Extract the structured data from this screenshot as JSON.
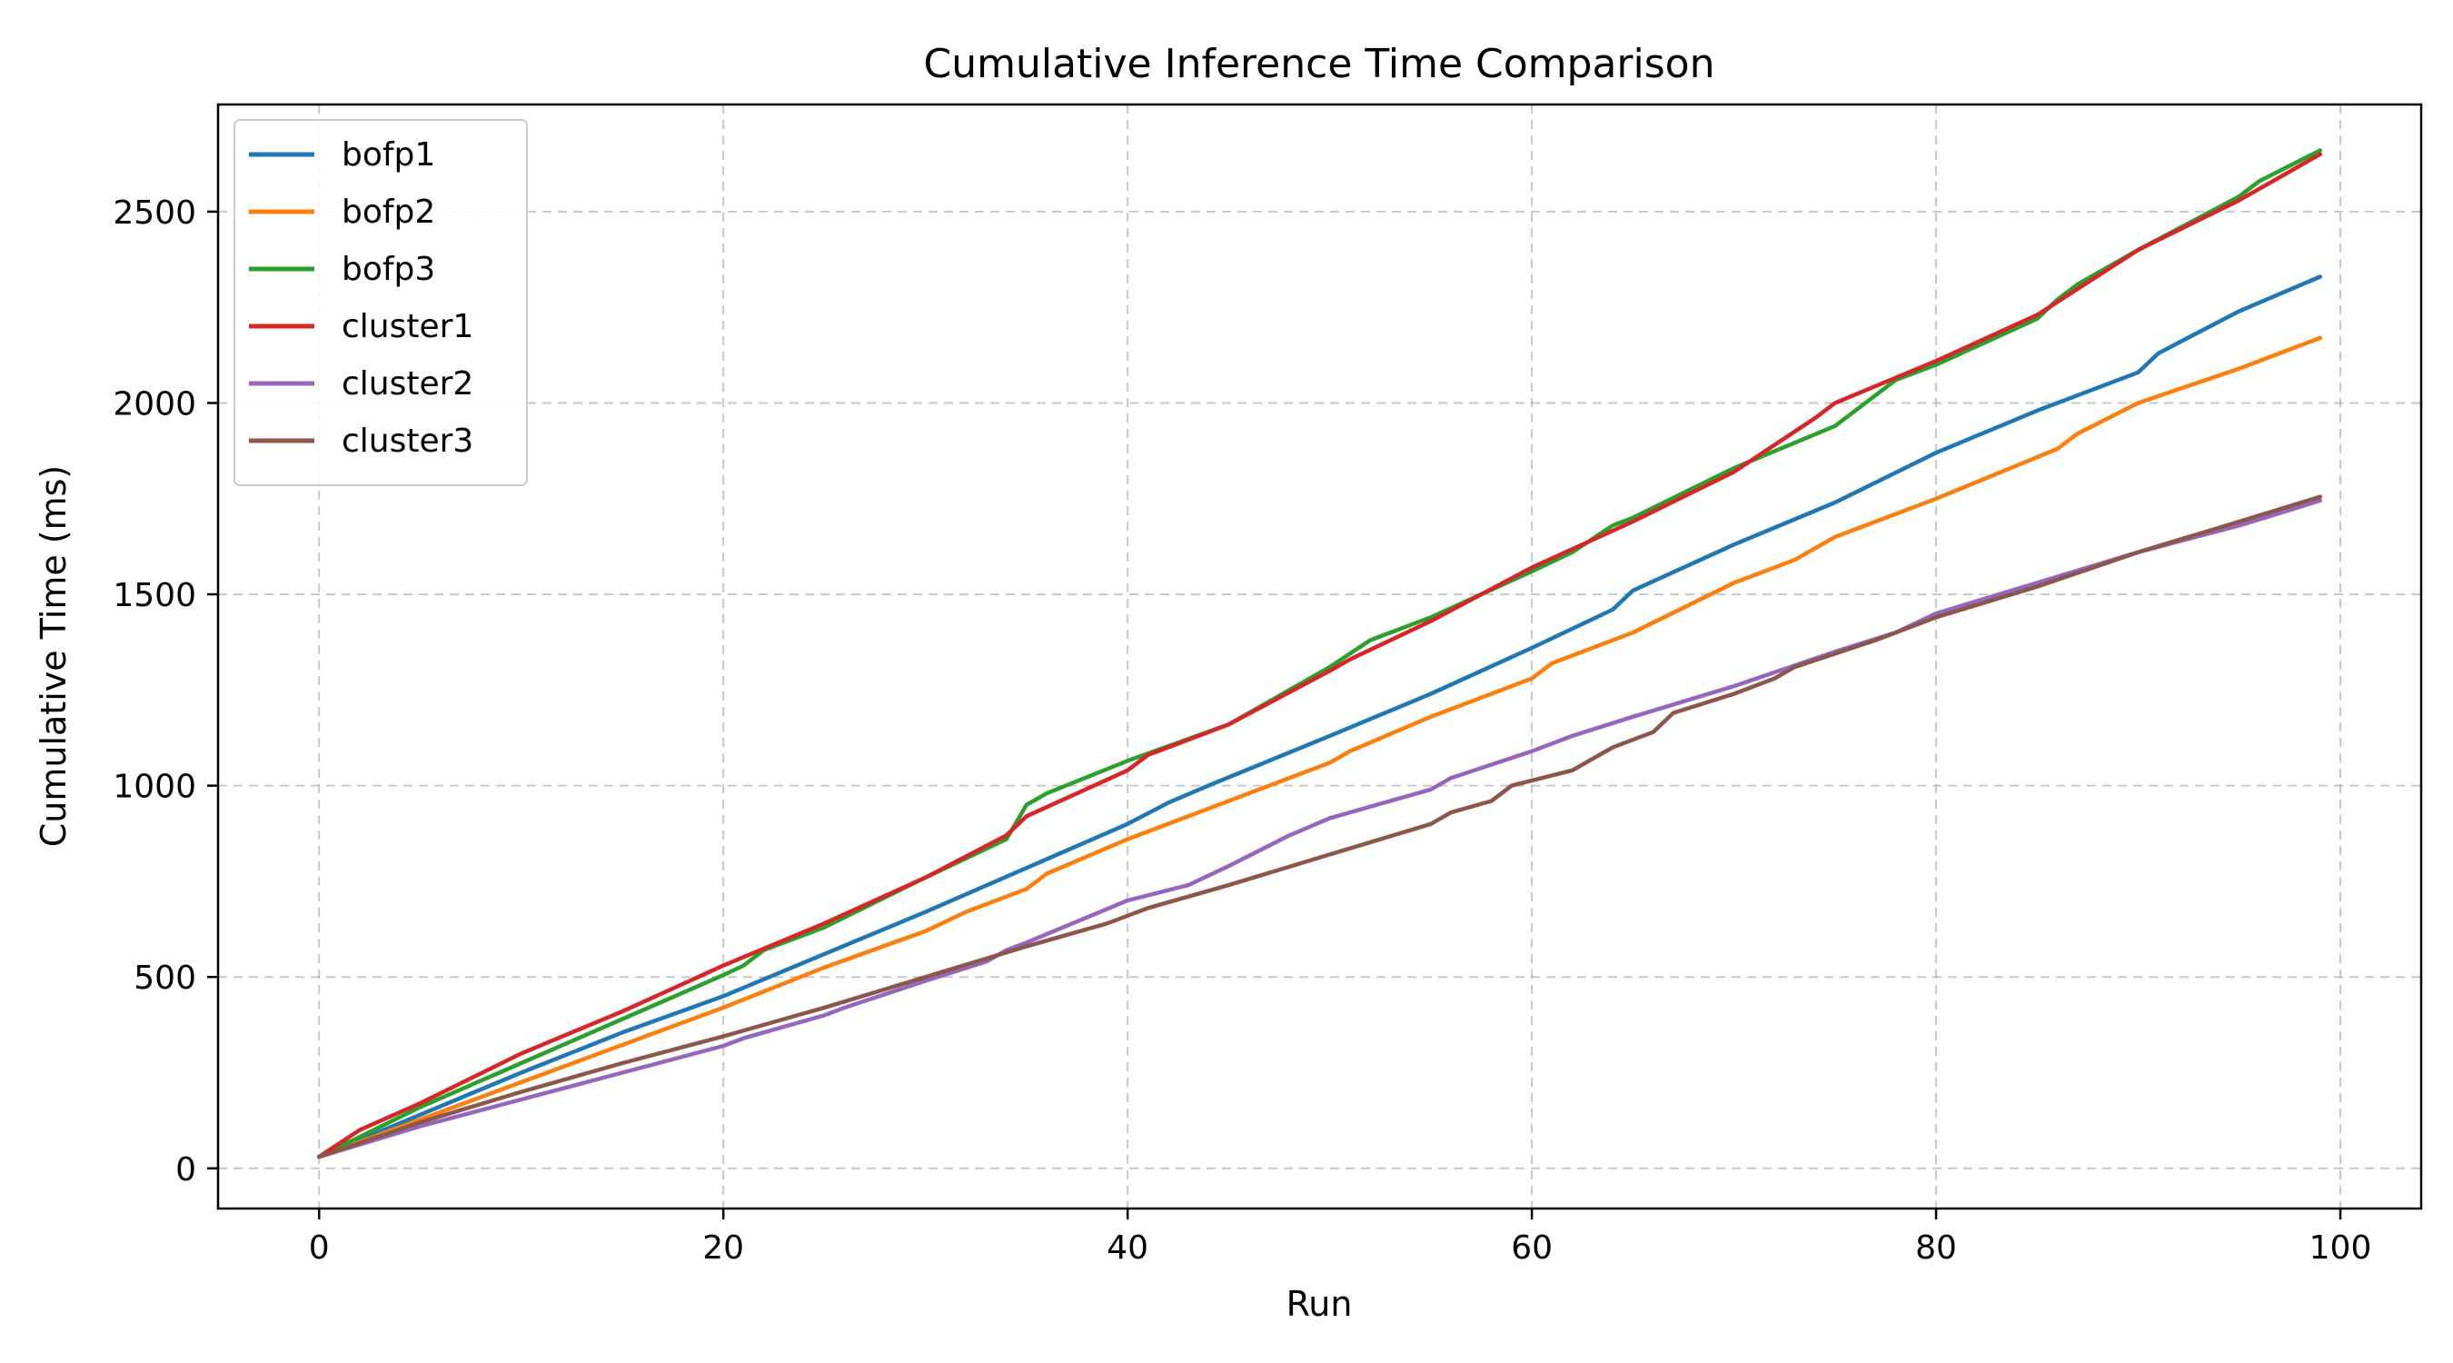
{
  "chart_data": {
    "type": "line",
    "title": "Cumulative Inference Time Comparison",
    "xlabel": "Run",
    "ylabel": "Cumulative Time (ms)",
    "xlim": [
      -5,
      104
    ],
    "ylim": [
      -105,
      2780
    ],
    "xticks": [
      0,
      20,
      40,
      60,
      80,
      100
    ],
    "yticks": [
      0,
      500,
      1000,
      1500,
      2000,
      2500
    ],
    "grid": true,
    "legend_position": "upper-left",
    "series": [
      {
        "name": "bofp1",
        "color": "#1f77b4",
        "points": [
          [
            0,
            30
          ],
          [
            5,
            140
          ],
          [
            10,
            250
          ],
          [
            15,
            355
          ],
          [
            20,
            450
          ],
          [
            25,
            560
          ],
          [
            30,
            670
          ],
          [
            35,
            785
          ],
          [
            40,
            900
          ],
          [
            42,
            955
          ],
          [
            44,
            1000
          ],
          [
            50,
            1130
          ],
          [
            55,
            1240
          ],
          [
            60,
            1360
          ],
          [
            64,
            1460
          ],
          [
            65,
            1510
          ],
          [
            70,
            1630
          ],
          [
            75,
            1740
          ],
          [
            80,
            1870
          ],
          [
            85,
            1980
          ],
          [
            90,
            2080
          ],
          [
            91,
            2130
          ],
          [
            95,
            2240
          ],
          [
            99,
            2330
          ]
        ]
      },
      {
        "name": "bofp2",
        "color": "#ff7f0e",
        "points": [
          [
            0,
            30
          ],
          [
            10,
            225
          ],
          [
            20,
            420
          ],
          [
            25,
            525
          ],
          [
            30,
            620
          ],
          [
            32,
            670
          ],
          [
            35,
            730
          ],
          [
            36,
            770
          ],
          [
            40,
            860
          ],
          [
            45,
            960
          ],
          [
            50,
            1060
          ],
          [
            51,
            1090
          ],
          [
            55,
            1180
          ],
          [
            60,
            1280
          ],
          [
            61,
            1320
          ],
          [
            65,
            1400
          ],
          [
            70,
            1530
          ],
          [
            73,
            1590
          ],
          [
            75,
            1650
          ],
          [
            80,
            1750
          ],
          [
            86,
            1880
          ],
          [
            87,
            1920
          ],
          [
            90,
            2000
          ],
          [
            95,
            2090
          ],
          [
            99,
            2170
          ]
        ]
      },
      {
        "name": "bofp3",
        "color": "#2ca02c",
        "points": [
          [
            0,
            30
          ],
          [
            5,
            160
          ],
          [
            10,
            275
          ],
          [
            15,
            390
          ],
          [
            20,
            505
          ],
          [
            21,
            530
          ],
          [
            22,
            570
          ],
          [
            25,
            630
          ],
          [
            30,
            760
          ],
          [
            34,
            860
          ],
          [
            35,
            950
          ],
          [
            36,
            980
          ],
          [
            40,
            1065
          ],
          [
            45,
            1160
          ],
          [
            50,
            1310
          ],
          [
            52,
            1380
          ],
          [
            55,
            1440
          ],
          [
            60,
            1560
          ],
          [
            62,
            1610
          ],
          [
            64,
            1680
          ],
          [
            65,
            1700
          ],
          [
            70,
            1830
          ],
          [
            75,
            1940
          ],
          [
            76,
            1980
          ],
          [
            77,
            2020
          ],
          [
            78,
            2060
          ],
          [
            80,
            2100
          ],
          [
            85,
            2220
          ],
          [
            86,
            2270
          ],
          [
            87,
            2310
          ],
          [
            90,
            2400
          ],
          [
            95,
            2540
          ],
          [
            96,
            2580
          ],
          [
            99,
            2660
          ]
        ]
      },
      {
        "name": "cluster1",
        "color": "#d62728",
        "points": [
          [
            0,
            30
          ],
          [
            2,
            100
          ],
          [
            5,
            170
          ],
          [
            10,
            300
          ],
          [
            15,
            410
          ],
          [
            20,
            530
          ],
          [
            25,
            640
          ],
          [
            30,
            760
          ],
          [
            34,
            870
          ],
          [
            35,
            920
          ],
          [
            40,
            1040
          ],
          [
            41,
            1080
          ],
          [
            45,
            1160
          ],
          [
            50,
            1300
          ],
          [
            51,
            1330
          ],
          [
            55,
            1430
          ],
          [
            60,
            1570
          ],
          [
            65,
            1690
          ],
          [
            70,
            1820
          ],
          [
            74,
            1960
          ],
          [
            75,
            2000
          ],
          [
            80,
            2110
          ],
          [
            85,
            2230
          ],
          [
            90,
            2400
          ],
          [
            95,
            2530
          ],
          [
            99,
            2650
          ]
        ]
      },
      {
        "name": "cluster2",
        "color": "#9467bd",
        "points": [
          [
            0,
            30
          ],
          [
            5,
            110
          ],
          [
            10,
            180
          ],
          [
            15,
            250
          ],
          [
            20,
            320
          ],
          [
            21,
            340
          ],
          [
            25,
            400
          ],
          [
            26,
            420
          ],
          [
            30,
            490
          ],
          [
            33,
            540
          ],
          [
            34,
            570
          ],
          [
            35,
            590
          ],
          [
            40,
            700
          ],
          [
            43,
            740
          ],
          [
            45,
            790
          ],
          [
            48,
            870
          ],
          [
            50,
            915
          ],
          [
            55,
            990
          ],
          [
            56,
            1020
          ],
          [
            60,
            1090
          ],
          [
            62,
            1130
          ],
          [
            65,
            1180
          ],
          [
            70,
            1260
          ],
          [
            75,
            1350
          ],
          [
            78,
            1400
          ],
          [
            80,
            1450
          ],
          [
            85,
            1530
          ],
          [
            90,
            1610
          ],
          [
            95,
            1680
          ],
          [
            99,
            1745
          ]
        ]
      },
      {
        "name": "cluster3",
        "color": "#8c564b",
        "points": [
          [
            0,
            30
          ],
          [
            5,
            120
          ],
          [
            10,
            200
          ],
          [
            15,
            275
          ],
          [
            20,
            345
          ],
          [
            25,
            420
          ],
          [
            30,
            500
          ],
          [
            35,
            580
          ],
          [
            39,
            640
          ],
          [
            40,
            660
          ],
          [
            41,
            680
          ],
          [
            45,
            740
          ],
          [
            50,
            820
          ],
          [
            55,
            900
          ],
          [
            56,
            930
          ],
          [
            58,
            960
          ],
          [
            59,
            1000
          ],
          [
            62,
            1040
          ],
          [
            64,
            1100
          ],
          [
            66,
            1140
          ],
          [
            67,
            1190
          ],
          [
            70,
            1240
          ],
          [
            72,
            1280
          ],
          [
            73,
            1310
          ],
          [
            77,
            1380
          ],
          [
            80,
            1440
          ],
          [
            85,
            1520
          ],
          [
            90,
            1610
          ],
          [
            95,
            1690
          ],
          [
            99,
            1755
          ]
        ]
      }
    ]
  }
}
